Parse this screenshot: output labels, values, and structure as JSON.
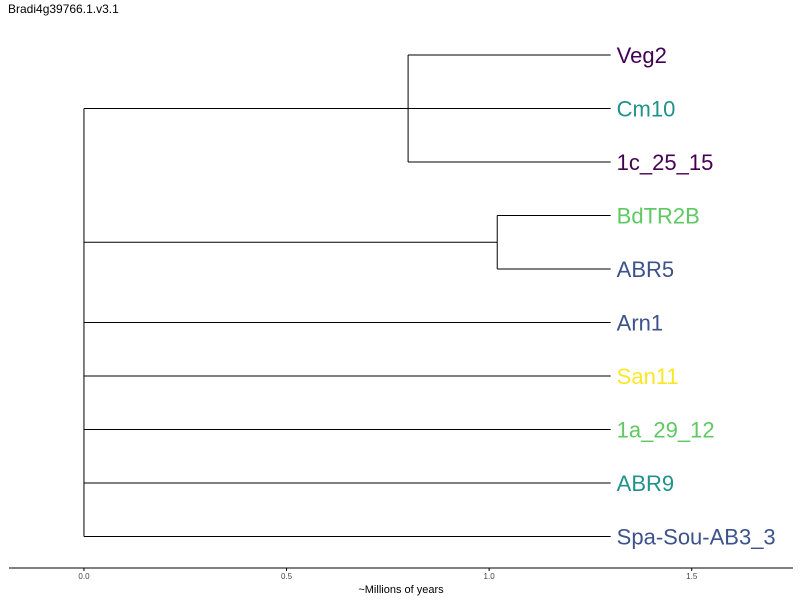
{
  "title": "Bradi4g39766.1.v3.1",
  "xlabel": "~Millions of years",
  "axis": {
    "ticks": [
      0.0,
      0.5,
      1.0,
      1.5
    ],
    "tick_labels": [
      "0.0",
      "0.5",
      "1.0",
      "1.5"
    ],
    "range": [
      -0.185,
      1.75
    ]
  },
  "colors": {
    "purple": "#440154",
    "teal": "#21918c",
    "green": "#5ec962",
    "blue": "#3b528b",
    "yellow": "#fde725"
  },
  "leaves": [
    {
      "label": "Veg2",
      "color": "#440154",
      "age": 1.3
    },
    {
      "label": "Cm10",
      "color": "#21918c",
      "age": 1.3
    },
    {
      "label": "1c_25_15",
      "color": "#440154",
      "age": 1.3
    },
    {
      "label": "BdTR2B",
      "color": "#5ec962",
      "age": 1.3
    },
    {
      "label": "ABR5",
      "color": "#3b528b",
      "age": 1.3
    },
    {
      "label": "Arn1",
      "color": "#3b528b",
      "age": 1.3
    },
    {
      "label": "San11",
      "color": "#fde725",
      "age": 1.3
    },
    {
      "label": "1a_29_12",
      "color": "#5ec962",
      "age": 1.3
    },
    {
      "label": "ABR9",
      "color": "#21918c",
      "age": 1.3
    },
    {
      "label": "Spa-Sou-AB3_3",
      "color": "#3b528b",
      "age": 1.3
    }
  ],
  "tree": {
    "age": 0.0,
    "children": [
      {
        "age": 0.8,
        "children": [
          {
            "leaf": 0
          },
          {
            "leaf": 1
          },
          {
            "leaf": 2
          }
        ]
      },
      {
        "age": 1.02,
        "children": [
          {
            "leaf": 3
          },
          {
            "leaf": 4
          }
        ]
      },
      {
        "leaf": 5
      },
      {
        "leaf": 6
      },
      {
        "leaf": 7
      },
      {
        "leaf": 8
      },
      {
        "leaf": 9
      }
    ]
  }
}
